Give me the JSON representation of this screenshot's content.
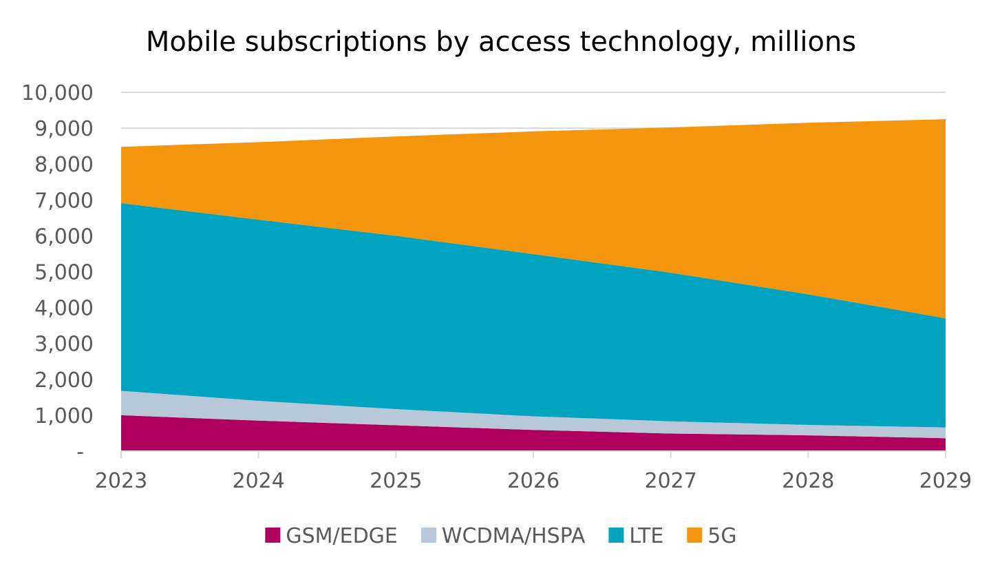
{
  "chart_data": {
    "type": "area",
    "stacked": true,
    "title": "Mobile subscriptions by access technology, millions",
    "xlabel": "",
    "ylabel": "",
    "x": [
      2023,
      2024,
      2025,
      2026,
      2027,
      2028,
      2029
    ],
    "x_tick_labels": [
      "2023",
      "2024",
      "2025",
      "2026",
      "2027",
      "2028",
      "2029"
    ],
    "ylim": [
      0,
      10000
    ],
    "y_ticks": [
      0,
      1000,
      2000,
      3000,
      4000,
      5000,
      6000,
      7000,
      8000,
      9000,
      10000
    ],
    "y_tick_labels": [
      "-",
      "1,000",
      "2,000",
      "3,000",
      "4,000",
      "5,000",
      "6,000",
      "7,000",
      "8,000",
      "9,000",
      "10,000"
    ],
    "grid": true,
    "legend_position": "bottom",
    "series": [
      {
        "name": "GSM/EDGE",
        "color": "#b0005f",
        "values": [
          1000,
          850,
          720,
          590,
          490,
          440,
          360
        ]
      },
      {
        "name": "WCDMA/HSPA",
        "color": "#b8c8d8",
        "values": [
          680,
          550,
          450,
          380,
          340,
          290,
          300
        ]
      },
      {
        "name": "LTE",
        "color": "#00a3c0",
        "values": [
          5230,
          5050,
          4830,
          4520,
          4140,
          3640,
          3040
        ]
      },
      {
        "name": "5G",
        "color": "#f4960d",
        "values": [
          1570,
          2160,
          2770,
          3420,
          4050,
          4780,
          5550
        ]
      }
    ]
  }
}
